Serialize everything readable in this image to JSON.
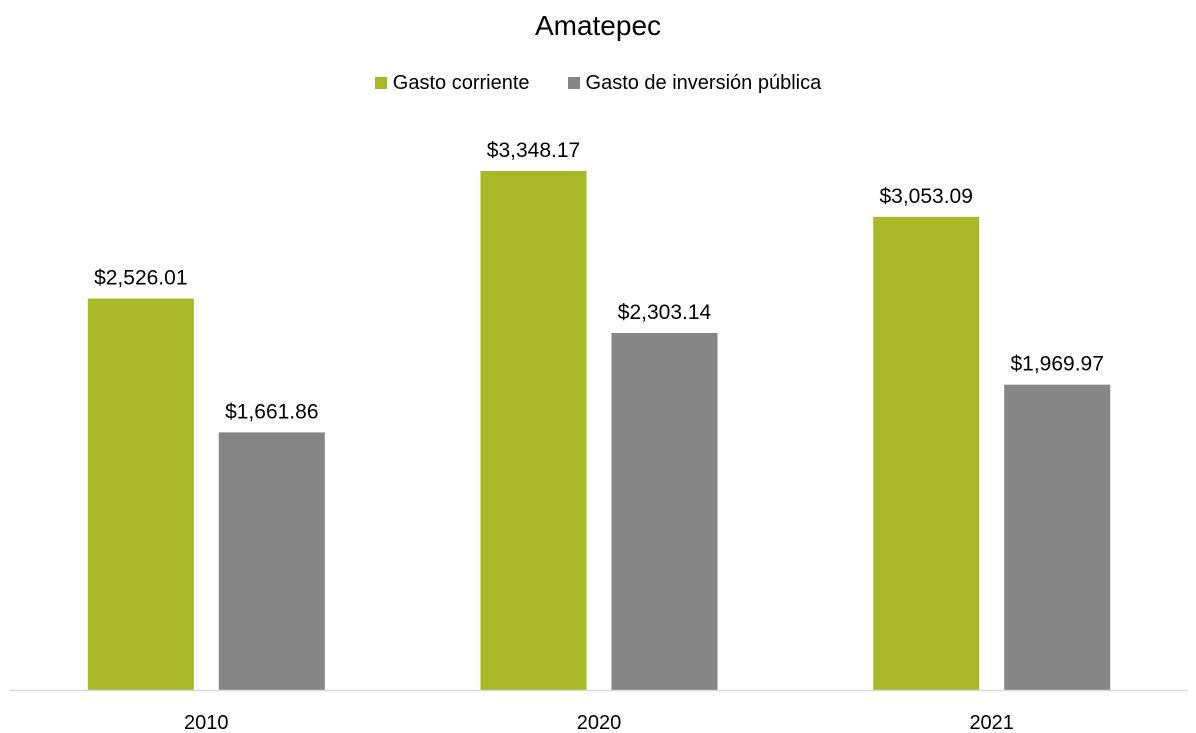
{
  "chart_data": {
    "type": "bar",
    "title": "Amatepec",
    "categories": [
      "2010",
      "2020",
      "2021"
    ],
    "series": [
      {
        "name": "Gasto corriente",
        "color": "#a8b928",
        "values": [
          2526.01,
          3348.17,
          3053.09
        ],
        "labels": [
          "$2,526.01",
          "$3,348.17",
          "$3,053.09"
        ]
      },
      {
        "name": "Gasto de inversión pública",
        "color": "#868686",
        "values": [
          1661.86,
          2303.14,
          1969.97
        ],
        "labels": [
          "$1,661.86",
          "$2,303.14",
          "$1,969.97"
        ]
      }
    ],
    "ylim": [
      0,
      4000
    ],
    "grid": false,
    "legend": "top-center",
    "axis_color": "#d9d9d9"
  }
}
